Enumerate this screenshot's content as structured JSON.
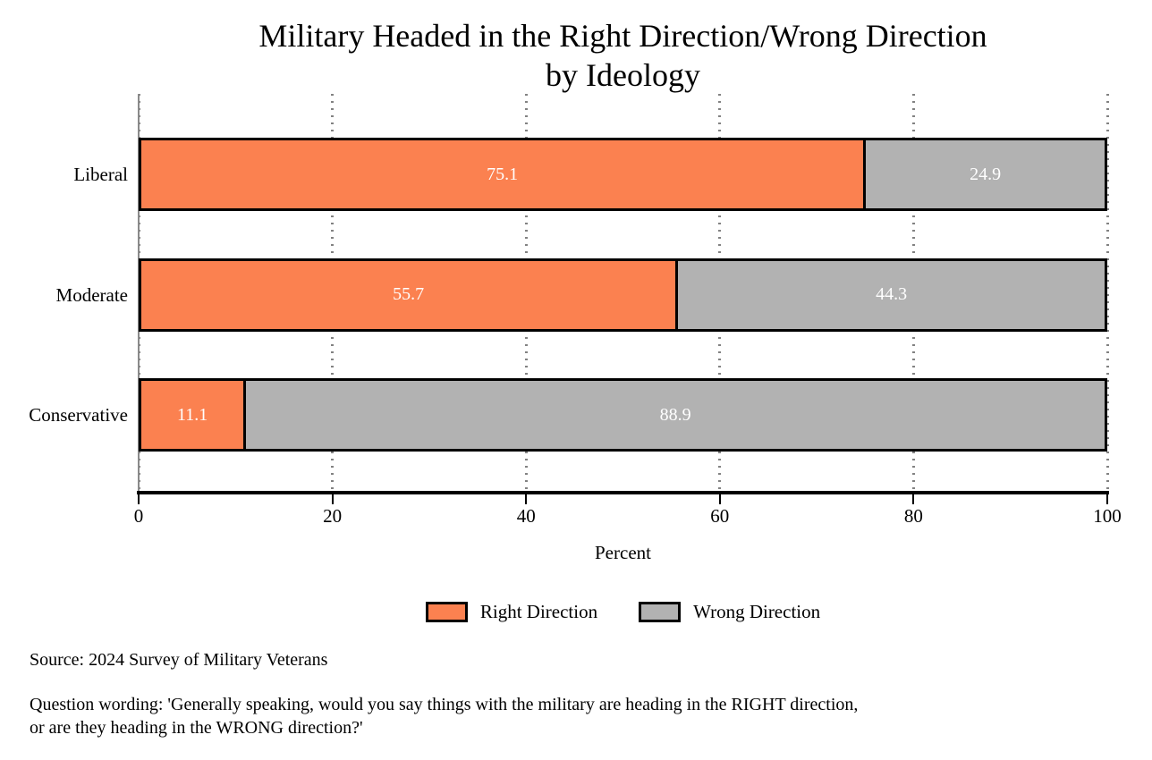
{
  "chart_data": {
    "type": "bar",
    "orientation": "horizontal_stacked",
    "title": "Military Headed in the Right Direction/Wrong Direction\nby Ideology",
    "categories": [
      "Liberal",
      "Moderate",
      "Conservative"
    ],
    "series": [
      {
        "name": "Right Direction",
        "color": "#fb8150",
        "values": [
          75.1,
          55.7,
          11.1
        ]
      },
      {
        "name": "Wrong Direction",
        "color": "#b2b2b2",
        "values": [
          24.9,
          44.3,
          88.9
        ]
      }
    ],
    "xlabel": "Percent",
    "x_ticks": [
      0,
      20,
      40,
      60,
      80,
      100
    ],
    "xlim": [
      0,
      100
    ],
    "grid": true,
    "legend_position": "bottom",
    "bar_border_color": "#000000",
    "value_label_color": "#ffffff",
    "gridline_color": "#828282",
    "zero_line_color": "#8a8a8a"
  },
  "notes": {
    "source": "Source: 2024 Survey of Military Veterans",
    "question": "Question wording: 'Generally speaking, would you say things with the military are heading in the RIGHT direction,\nor are they heading in the WRONG direction?'"
  }
}
